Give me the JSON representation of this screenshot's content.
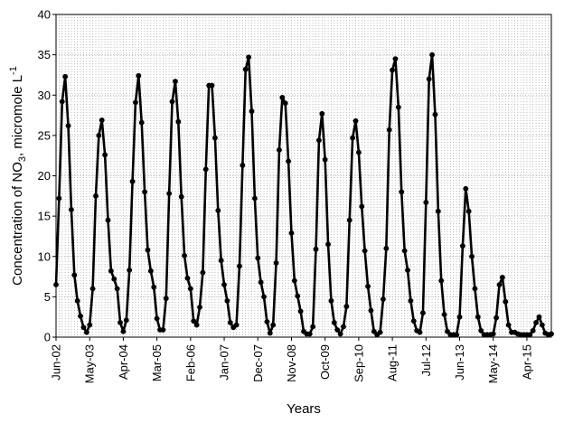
{
  "chart_data": {
    "type": "line",
    "title": "",
    "xlabel": "Years",
    "ylabel_main": "Concentration of NO",
    "ylabel_sub": "3",
    "ylabel_rest": ", micromole L",
    "ylabel_sup": "-1",
    "ylim": [
      0,
      40
    ],
    "yticks": [
      "0",
      "5",
      "10",
      "15",
      "20",
      "25",
      "30",
      "35",
      "40"
    ],
    "xlim": [
      0,
      162
    ],
    "xtick_labels": [
      "Jun-02",
      "May-03",
      "Apr-04",
      "Mar-05",
      "Feb-06",
      "Jan-07",
      "Dec-07",
      "Nov-08",
      "Oct-09",
      "Sep-10",
      "Aug-11",
      "Jul-12",
      "Jun-13",
      "May-14",
      "Apr-15"
    ],
    "xtick_positions": [
      0,
      11,
      22,
      33,
      44,
      55,
      66,
      77,
      88,
      99,
      110,
      121,
      132,
      143,
      154
    ],
    "grid": true,
    "series": [
      {
        "color": "#000000",
        "x": [
          0,
          1,
          2,
          3,
          4,
          5,
          6,
          7,
          8,
          9,
          10,
          11,
          12,
          13,
          14,
          15,
          16,
          17,
          18,
          19,
          20,
          21,
          22,
          23,
          24,
          25,
          26,
          27,
          28,
          29,
          30,
          31,
          32,
          33,
          34,
          35,
          36,
          37,
          38,
          39,
          40,
          41,
          42,
          43,
          44,
          45,
          46,
          47,
          48,
          49,
          50,
          51,
          52,
          53,
          54,
          55,
          56,
          57,
          58,
          59,
          60,
          61,
          62,
          63,
          64,
          65,
          66,
          67,
          68,
          69,
          70,
          71,
          72,
          73,
          74,
          75,
          76,
          77,
          78,
          79,
          80,
          81,
          82,
          83,
          84,
          85,
          86,
          87,
          88,
          89,
          90,
          91,
          92,
          93,
          94,
          95,
          96,
          97,
          98,
          99,
          100,
          101,
          102,
          103,
          104,
          105,
          106,
          107,
          108,
          109,
          110,
          111,
          112,
          113,
          114,
          115,
          116,
          117,
          118,
          119,
          120,
          121,
          122,
          123,
          124,
          125,
          126,
          127,
          128,
          129,
          130,
          131,
          132,
          133,
          134,
          135,
          136,
          137,
          138,
          139,
          140,
          141,
          142,
          143,
          144,
          145,
          146,
          147,
          148,
          149,
          150,
          151,
          152,
          153,
          154,
          155,
          156,
          157,
          158,
          159,
          160,
          161,
          162
        ],
        "values": [
          6.5,
          17.2,
          29.2,
          32.3,
          26.2,
          15.8,
          7.7,
          4.5,
          2.6,
          1.2,
          0.6,
          1.5,
          6.0,
          17.5,
          25.0,
          26.9,
          22.6,
          14.5,
          8.2,
          7.2,
          6.0,
          1.8,
          0.7,
          2.1,
          8.3,
          19.3,
          29.1,
          32.4,
          26.6,
          18.0,
          10.8,
          8.2,
          6.2,
          2.3,
          0.9,
          0.9,
          4.8,
          17.8,
          29.2,
          31.7,
          26.7,
          17.4,
          10.1,
          7.3,
          6.0,
          2.0,
          1.5,
          3.7,
          8.0,
          20.8,
          31.2,
          31.2,
          24.7,
          15.7,
          9.5,
          6.5,
          4.5,
          1.8,
          1.2,
          1.5,
          8.8,
          21.3,
          33.2,
          34.7,
          28.0,
          17.2,
          9.8,
          6.8,
          5.0,
          1.9,
          0.5,
          1.5,
          9.2,
          23.2,
          29.7,
          29.0,
          21.8,
          12.9,
          7.0,
          5.1,
          3.2,
          0.7,
          0.4,
          0.4,
          1.3,
          10.9,
          24.4,
          27.7,
          22.0,
          11.5,
          4.5,
          1.8,
          0.9,
          0.4,
          1.3,
          3.8,
          14.5,
          24.7,
          26.8,
          22.9,
          16.2,
          10.7,
          6.3,
          3.3,
          0.7,
          0.3,
          0.6,
          4.7,
          11.0,
          25.7,
          33.1,
          34.5,
          28.5,
          18.0,
          10.7,
          8.3,
          4.5,
          2.0,
          0.8,
          0.6,
          3.0,
          16.7,
          32.0,
          35.0,
          27.6,
          15.6,
          7.0,
          2.8,
          0.7,
          0.3,
          0.3,
          0.3,
          2.5,
          11.3,
          18.4,
          15.6,
          10.0,
          6.0,
          2.5,
          0.8,
          0.3,
          0.3,
          0.3,
          0.4,
          2.4,
          6.5,
          7.4,
          4.4,
          1.5,
          0.6,
          0.6,
          0.4,
          0.3,
          0.3,
          0.3,
          0.3,
          0.8,
          1.8,
          2.5,
          1.5,
          0.5,
          0.3,
          0.4
        ]
      }
    ]
  }
}
